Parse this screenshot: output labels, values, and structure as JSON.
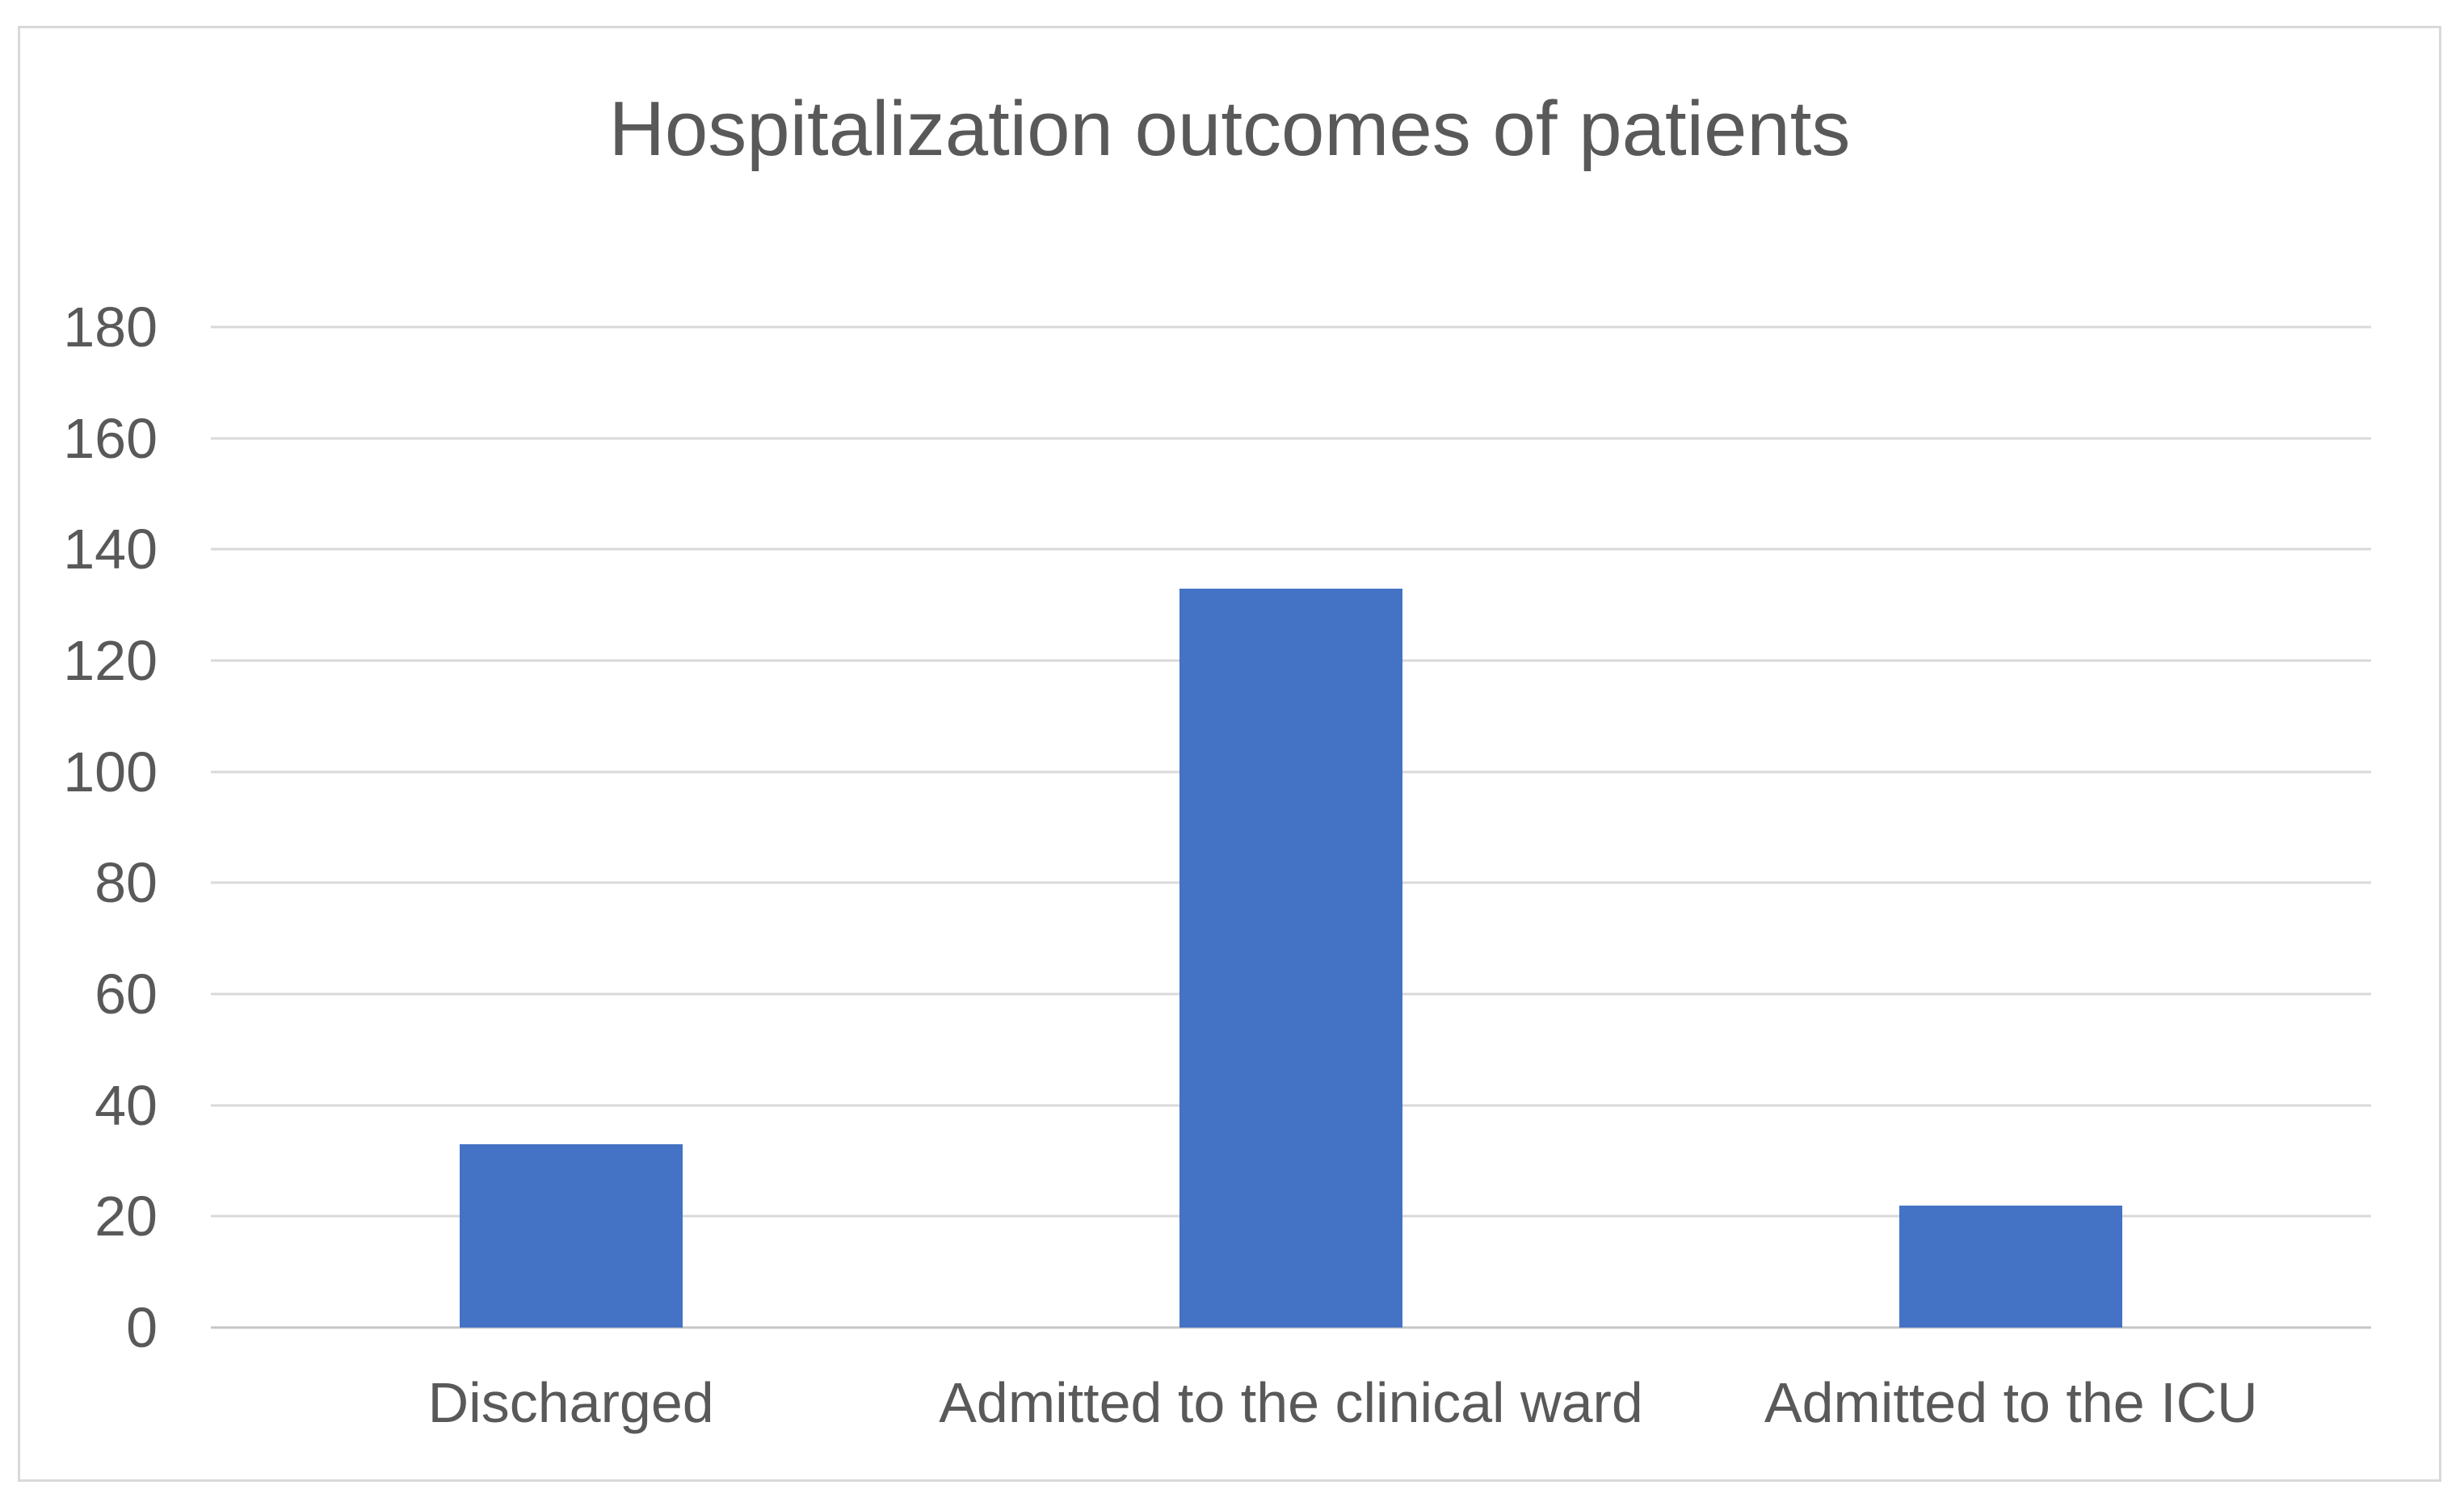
{
  "chart_data": {
    "type": "bar",
    "title": "Hospitalization outcomes of patients",
    "categories": [
      "Discharged",
      "Admitted to the clinical ward",
      "Admitted to the ICU"
    ],
    "values": [
      33,
      133,
      22
    ],
    "xlabel": "",
    "ylabel": "",
    "ylim": [
      0,
      180
    ],
    "y_ticks": [
      0,
      20,
      40,
      60,
      80,
      100,
      120,
      140,
      160,
      180
    ],
    "grid": "horizontal",
    "legend_position": "none",
    "colors": {
      "bar_fill": "#4472C4",
      "gridline": "#D9D9D9",
      "axis_line": "#C6C6C6",
      "text": "#595959",
      "chart_border": "#D9D9D9",
      "background": "#FFFFFF"
    }
  }
}
